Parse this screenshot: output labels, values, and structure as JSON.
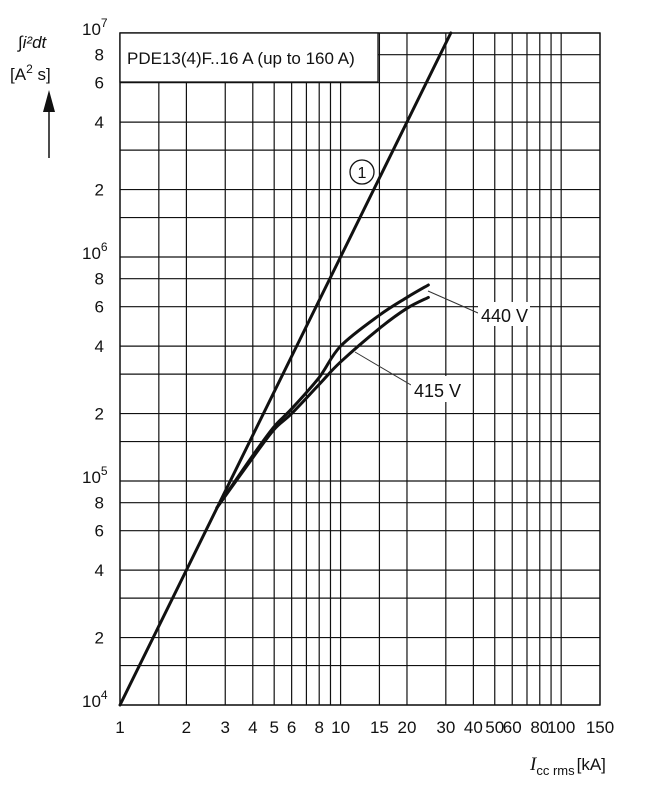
{
  "chart_data": {
    "type": "line",
    "title": "PDE13(4)F..16 A (up to 160 A)",
    "xlabel": "I",
    "xlabel_sub": "cc rms",
    "xlabel_unit": "[kA]",
    "ylabel": "∫i²dt",
    "ylabel_unit_base": "[A",
    "ylabel_unit_sup": "2",
    "ylabel_unit_end": " s]",
    "xscale": "log",
    "yscale": "log",
    "xlim": [
      1,
      150
    ],
    "ylim": [
      10000,
      10000000
    ],
    "grid": true,
    "x_ticks": [
      {
        "v": 1,
        "label": "1"
      },
      {
        "v": 2,
        "label": "2"
      },
      {
        "v": 3,
        "label": "3"
      },
      {
        "v": 4,
        "label": "4"
      },
      {
        "v": 5,
        "label": "5"
      },
      {
        "v": 6,
        "label": "6"
      },
      {
        "v": 8,
        "label": "8"
      },
      {
        "v": 10,
        "label": "10"
      },
      {
        "v": 15,
        "label": "15"
      },
      {
        "v": 20,
        "label": "20"
      },
      {
        "v": 30,
        "label": "30"
      },
      {
        "v": 40,
        "label": "40"
      },
      {
        "v": 50,
        "label": "50"
      },
      {
        "v": 60,
        "label": "60"
      },
      {
        "v": 80,
        "label": "80"
      },
      {
        "v": 100,
        "label": "100"
      },
      {
        "v": 150,
        "label": "150"
      }
    ],
    "x_gridlines": [
      1,
      1.5,
      2,
      3,
      4,
      5,
      6,
      7,
      8,
      9,
      10,
      15,
      20,
      30,
      40,
      50,
      60,
      70,
      80,
      90,
      100,
      150
    ],
    "y_gridline_mantissas": [
      1,
      1.5,
      2,
      3,
      4,
      6,
      8
    ],
    "y_ticks": [
      {
        "v": 10000,
        "base": "10",
        "exp": "4"
      },
      {
        "v": 20000,
        "label": "2"
      },
      {
        "v": 40000,
        "label": "4"
      },
      {
        "v": 60000,
        "label": "6"
      },
      {
        "v": 80000,
        "label": "8"
      },
      {
        "v": 100000,
        "base": "10",
        "exp": "5"
      },
      {
        "v": 200000,
        "label": "2"
      },
      {
        "v": 400000,
        "label": "4"
      },
      {
        "v": 600000,
        "label": "6"
      },
      {
        "v": 800000,
        "label": "8"
      },
      {
        "v": 1000000,
        "base": "10",
        "exp": "6"
      },
      {
        "v": 2000000,
        "label": "2"
      },
      {
        "v": 4000000,
        "label": "4"
      },
      {
        "v": 6000000,
        "label": "6"
      },
      {
        "v": 8000000,
        "label": "8"
      },
      {
        "v": 10000000,
        "base": "10",
        "exp": "7"
      }
    ],
    "series": [
      {
        "name": "1",
        "label_style": "circled",
        "color": "#111111",
        "points": [
          [
            1,
            10000
          ],
          [
            31.6,
            10000000
          ]
        ]
      },
      {
        "name": "440 V",
        "color": "#111111",
        "points": [
          [
            2.75,
            76000
          ],
          [
            4,
            130000
          ],
          [
            5,
            175000
          ],
          [
            6,
            210000
          ],
          [
            8,
            290000
          ],
          [
            10,
            400000
          ],
          [
            15,
            550000
          ],
          [
            20,
            660000
          ],
          [
            25,
            750000
          ]
        ]
      },
      {
        "name": "415 V",
        "color": "#111111",
        "points": [
          [
            2.75,
            76000
          ],
          [
            4,
            127000
          ],
          [
            5,
            170000
          ],
          [
            6,
            200000
          ],
          [
            8,
            270000
          ],
          [
            10,
            340000
          ],
          [
            15,
            480000
          ],
          [
            20,
            590000
          ],
          [
            25,
            660000
          ]
        ]
      }
    ]
  }
}
